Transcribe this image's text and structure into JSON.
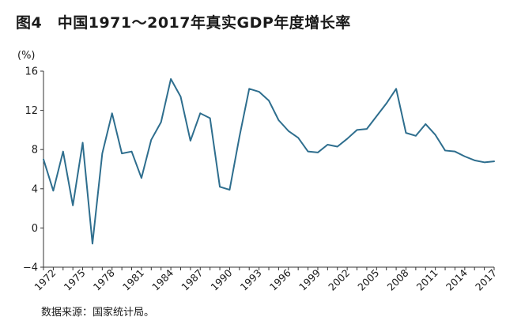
{
  "figure": {
    "title": "图4　中国1971～2017年真实GDP年度增长率",
    "source": "数据来源：国家统计局。"
  },
  "chart_data": {
    "type": "line",
    "title": "图4　中国1971～2017年真实GDP年度增长率",
    "ylabel": "(%)",
    "xlabel": "",
    "ylim": [
      -4,
      16
    ],
    "yticks": [
      -4,
      0,
      4,
      8,
      12,
      16
    ],
    "xlim": [
      1971,
      2017
    ],
    "xticks": [
      1972,
      1975,
      1978,
      1981,
      1984,
      1987,
      1990,
      1993,
      1996,
      1999,
      2002,
      2005,
      2008,
      2011,
      2014,
      2017
    ],
    "grid": false,
    "line_color": "#2e6e8e",
    "series": [
      {
        "x": [
          1971,
          1972,
          1973,
          1974,
          1975,
          1976,
          1977,
          1978,
          1979,
          1980,
          1981,
          1982,
          1983,
          1984,
          1985,
          1986,
          1987,
          1988,
          1989,
          1990,
          1991,
          1992,
          1993,
          1994,
          1995,
          1996,
          1997,
          1998,
          1999,
          2000,
          2001,
          2002,
          2003,
          2004,
          2005,
          2006,
          2007,
          2008,
          2009,
          2010,
          2011,
          2012,
          2013,
          2014,
          2015,
          2016,
          2017
        ],
        "values": [
          7.0,
          3.8,
          7.8,
          2.3,
          8.7,
          -1.6,
          7.6,
          11.7,
          7.6,
          7.8,
          5.1,
          9.0,
          10.8,
          15.2,
          13.4,
          8.9,
          11.7,
          11.2,
          4.2,
          3.9,
          9.3,
          14.2,
          13.9,
          13.0,
          11.0,
          9.9,
          9.2,
          7.8,
          7.7,
          8.5,
          8.3,
          9.1,
          10.0,
          10.1,
          11.4,
          12.7,
          14.2,
          9.7,
          9.4,
          10.6,
          9.5,
          7.9,
          7.8,
          7.3,
          6.9,
          6.7,
          6.8
        ]
      }
    ]
  }
}
